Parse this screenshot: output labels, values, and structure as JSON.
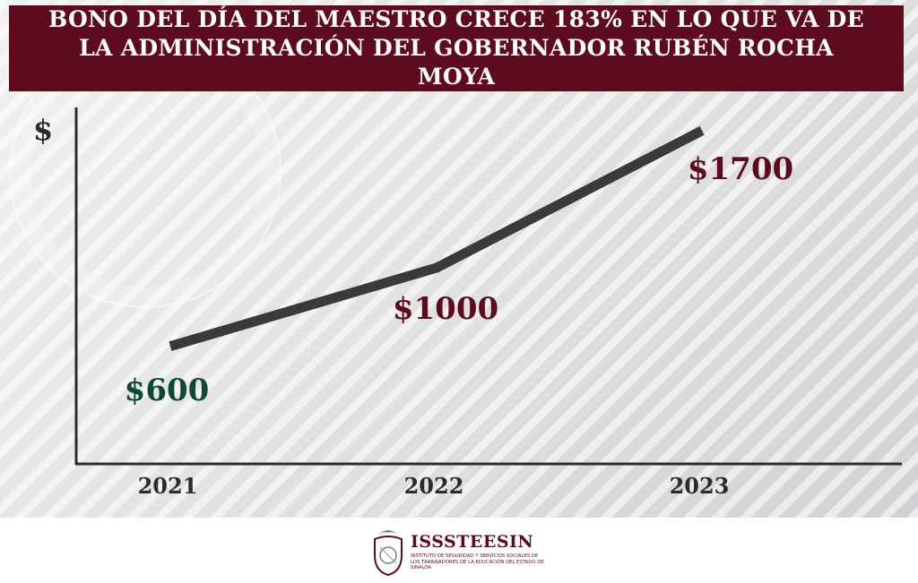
{
  "header": {
    "title": "BONO DEL DÍA DEL MAESTRO CRECE 183% EN LO QUE VA DE LA ADMINISTRACIÓN DEL GOBERNADOR RUBÉN ROCHA MOYA"
  },
  "chart_data": {
    "type": "line",
    "title": "BONO DEL DÍA DEL MAESTRO CRECE 183% EN LO QUE VA DE LA ADMINISTRACIÓN DEL GOBERNADOR RUBÉN ROCHA MOYA",
    "xlabel": "",
    "ylabel": "$",
    "categories": [
      "2021",
      "2022",
      "2023"
    ],
    "values": [
      600,
      1000,
      1700
    ],
    "data_labels": [
      "$600",
      "$1000",
      "$1700"
    ],
    "label_colors": [
      "#0d4a32",
      "#5d0b1f",
      "#5d0b1f"
    ],
    "line_color": "#3a3a3a",
    "grid": false,
    "ylim": [
      0,
      1900
    ]
  },
  "footer": {
    "logo_name": "ISSSTEESIN",
    "logo_subtitle": "INSTITUTO DE SEGURIDAD Y SERVICIOS SOCIALES DE LOS TRABAJADORES DE LA EDUCACIÓN DEL ESTADO DE SINALOA",
    "logo_icon": "state-seal-icon"
  }
}
